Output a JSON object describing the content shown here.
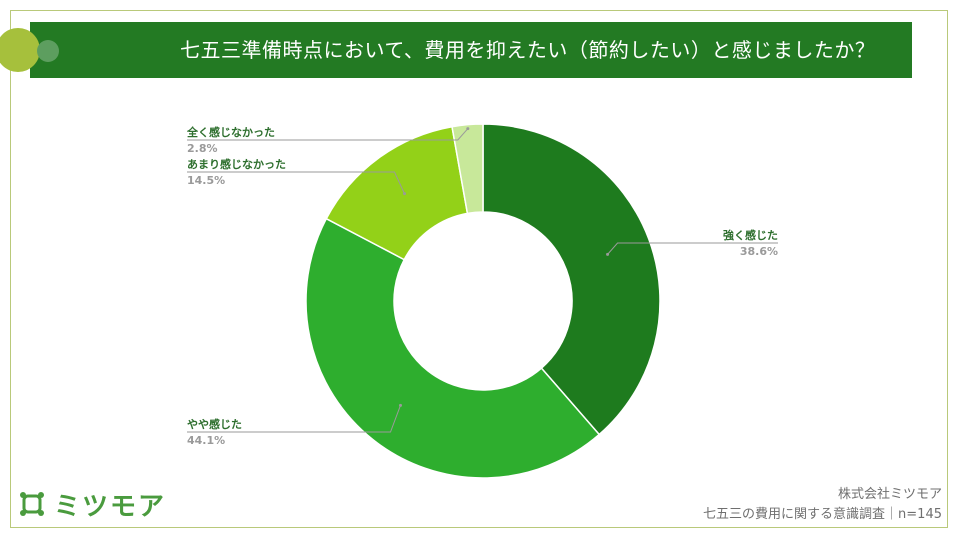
{
  "title": "七五三準備時点において、費用を抑えたい（節約したい）と感じましたか？",
  "brand": {
    "logo_text": "ミツモア",
    "accent": "#237a23"
  },
  "footer": {
    "company": "株式会社ミツモア",
    "survey": "七五三の費用に関する意識調査｜n=145"
  },
  "chart_data": {
    "type": "pie",
    "variant": "donut",
    "categories": [
      "強く感じた",
      "やや感じた",
      "あまり感じなかった",
      "全く感じなかった"
    ],
    "values": [
      38.6,
      44.1,
      14.5,
      2.8
    ],
    "labels": [
      "38.6%",
      "44.1%",
      "14.5%",
      "2.8%"
    ],
    "colors": [
      "#1e7b1e",
      "#2eae2e",
      "#93d118",
      "#c8e89a"
    ],
    "legend": "none",
    "title": ""
  }
}
